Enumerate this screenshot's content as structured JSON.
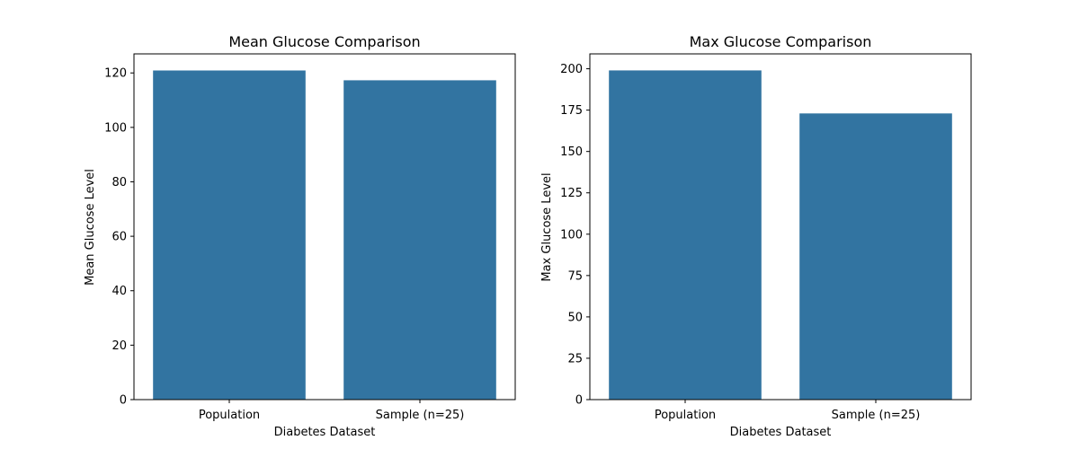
{
  "chart_data": [
    {
      "type": "bar",
      "title": "Mean Glucose Comparison",
      "xlabel": "Diabetes Dataset",
      "ylabel": "Mean Glucose Level",
      "categories": [
        "Population",
        "Sample (n=25)"
      ],
      "values": [
        120.9,
        117.3
      ],
      "ylim": [
        0,
        127
      ],
      "yticks": [
        0,
        20,
        40,
        60,
        80,
        100,
        120
      ],
      "grid": false,
      "bar_color": "#3274a1"
    },
    {
      "type": "bar",
      "title": "Max Glucose Comparison",
      "xlabel": "Diabetes Dataset",
      "ylabel": "Max Glucose Level",
      "categories": [
        "Population",
        "Sample (n=25)"
      ],
      "values": [
        199,
        173
      ],
      "ylim": [
        0,
        209
      ],
      "yticks": [
        0,
        25,
        50,
        75,
        100,
        125,
        150,
        175,
        200
      ],
      "grid": false,
      "bar_color": "#3274a1"
    }
  ]
}
